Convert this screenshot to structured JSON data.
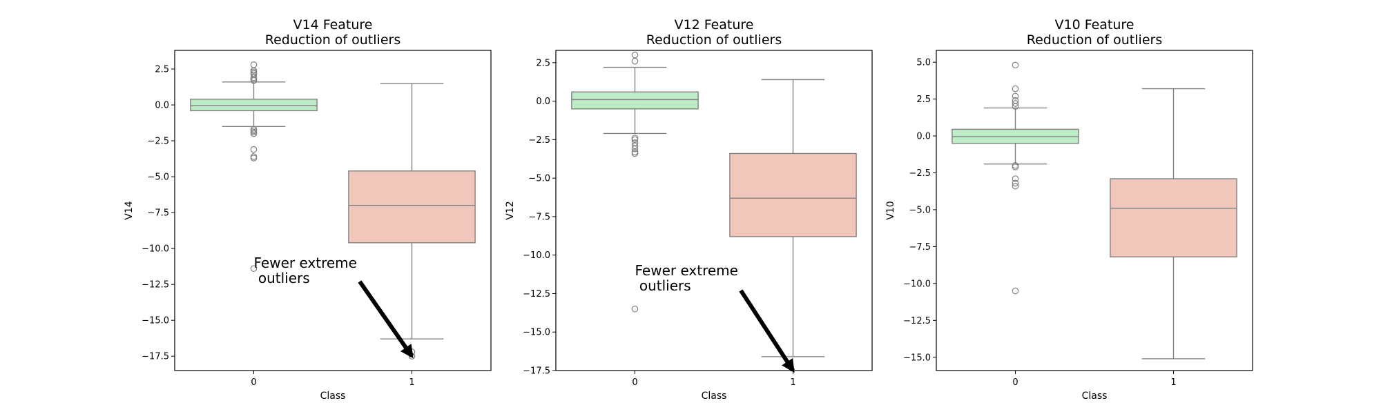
{
  "colors": {
    "class0": "#bdedc7",
    "class1": "#f1c7bb",
    "line": "#808080",
    "frame": "#000000"
  },
  "chart_data": [
    {
      "type": "box",
      "title_line1": "V14 Feature",
      "title_line2": "Reduction of outliers",
      "xlabel": "Class",
      "ylabel": "V14",
      "categories": [
        "0",
        "1"
      ],
      "ylim": [
        -18.5,
        3.8
      ],
      "yticks": [
        2.5,
        0.0,
        -2.5,
        -5.0,
        -7.5,
        -10.0,
        -12.5,
        -15.0,
        -17.5
      ],
      "ytick_labels": [
        "2.5",
        "0.0",
        "−2.5",
        "−5.0",
        "−7.5",
        "−10.0",
        "−12.5",
        "−15.0",
        "−17.5"
      ],
      "boxes": [
        {
          "category": "0",
          "whisker_low": -1.5,
          "q1": -0.4,
          "median": -0.05,
          "q3": 0.4,
          "whisker_high": 1.6,
          "outliers": [
            2.8,
            2.4,
            2.3,
            2.2,
            2.1,
            1.9,
            1.8,
            1.7,
            -1.7,
            -1.8,
            -1.9,
            -2.0,
            -3.1,
            -3.6,
            -3.7,
            -11.4
          ]
        },
        {
          "category": "1",
          "whisker_low": -16.3,
          "q1": -9.6,
          "median": -7.0,
          "q3": -4.6,
          "whisker_high": 1.5,
          "outliers": [
            -17.2,
            -17.5
          ]
        }
      ],
      "annotation": {
        "line1": "Fewer extreme",
        "line2": " outliers",
        "text_at": [
          0.0,
          -11.0
        ],
        "arrow_from": [
          0.67,
          -12.3
        ],
        "arrow_to": [
          1.0,
          -17.5
        ]
      }
    },
    {
      "type": "box",
      "title_line1": "V12 Feature",
      "title_line2": "Reduction of outliers",
      "xlabel": "Class",
      "ylabel": "V12",
      "categories": [
        "0",
        "1"
      ],
      "ylim": [
        -17.5,
        3.3
      ],
      "yticks": [
        2.5,
        0.0,
        -2.5,
        -5.0,
        -7.5,
        -10.0,
        -12.5,
        -15.0,
        -17.5
      ],
      "ytick_labels": [
        "2.5",
        "0.0",
        "−2.5",
        "−5.0",
        "−7.5",
        "−10.0",
        "−12.5",
        "−15.0",
        "−17.5"
      ],
      "boxes": [
        {
          "category": "0",
          "whisker_low": -2.1,
          "q1": -0.5,
          "median": 0.1,
          "q3": 0.6,
          "whisker_high": 2.2,
          "outliers": [
            3.0,
            2.6,
            -2.4,
            -2.5,
            -2.7,
            -2.9,
            -3.1,
            -3.3,
            -3.4,
            -13.5
          ]
        },
        {
          "category": "1",
          "whisker_low": -16.6,
          "q1": -8.8,
          "median": -6.3,
          "q3": -3.4,
          "whisker_high": 1.4,
          "outliers": []
        }
      ],
      "annotation": {
        "line1": "Fewer extreme",
        "line2": " outliers",
        "text_at": [
          0.0,
          -11.0
        ],
        "arrow_from": [
          0.67,
          -12.3
        ],
        "arrow_to": [
          1.0,
          -17.5
        ]
      }
    },
    {
      "type": "box",
      "title_line1": "V10 Feature",
      "title_line2": "Reduction of outliers",
      "xlabel": "Class",
      "ylabel": "V10",
      "categories": [
        "0",
        "1"
      ],
      "ylim": [
        -15.9,
        5.8
      ],
      "yticks": [
        5.0,
        2.5,
        0.0,
        -2.5,
        -5.0,
        -7.5,
        -10.0,
        -12.5,
        -15.0
      ],
      "ytick_labels": [
        "5.0",
        "2.5",
        "0.0",
        "−2.5",
        "−5.0",
        "−7.5",
        "−10.0",
        "−12.5",
        "−15.0"
      ],
      "boxes": [
        {
          "category": "0",
          "whisker_low": -1.9,
          "q1": -0.5,
          "median": -0.05,
          "q3": 0.45,
          "whisker_high": 1.9,
          "outliers": [
            4.8,
            3.2,
            2.7,
            2.4,
            2.2,
            2.0,
            -2.0,
            -2.1,
            -2.9,
            -3.2,
            -3.4,
            -10.5
          ]
        },
        {
          "category": "1",
          "whisker_low": -15.1,
          "q1": -8.2,
          "median": -4.9,
          "q3": -2.9,
          "whisker_high": 3.2,
          "outliers": []
        }
      ]
    }
  ]
}
